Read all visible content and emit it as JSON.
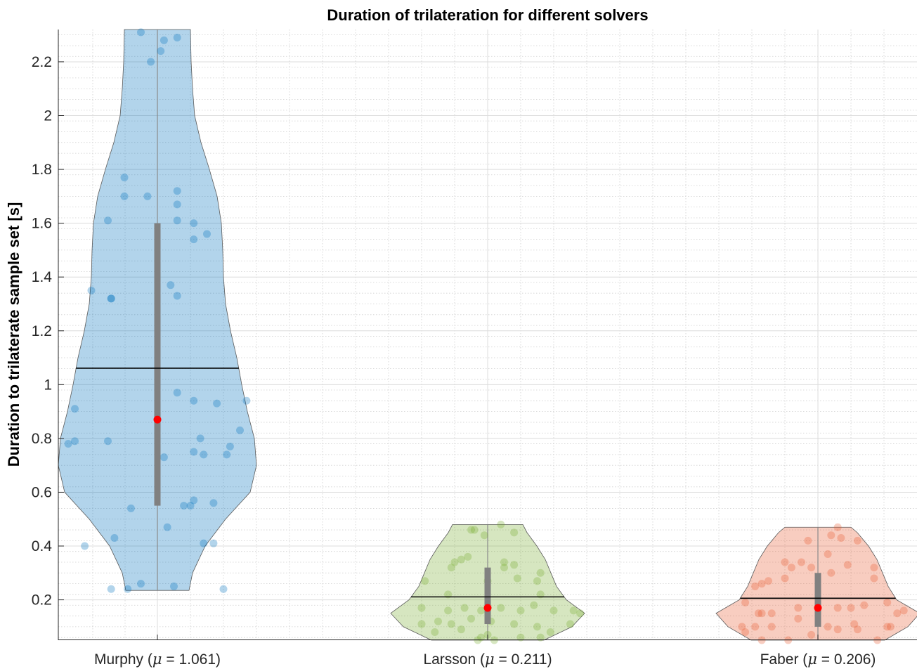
{
  "chart_data": {
    "type": "violin",
    "title": "Duration of trilateration for different solvers",
    "xlabel": "",
    "ylabel": "Duration to trilaterate sample set [s]",
    "ylim": [
      0.05,
      2.32
    ],
    "yticks": [
      0.2,
      0.4,
      0.6,
      0.8,
      1,
      1.2,
      1.4,
      1.6,
      1.8,
      2,
      2.2
    ],
    "grid": true,
    "minor_grid": true,
    "colors": {
      "Murphy": "#0072BD",
      "Larsson": "#77AC30",
      "Faber": "#E85A30",
      "median_marker": "#FF0000",
      "mean_line": "#000000",
      "box": "#808080"
    },
    "series": [
      {
        "name": "Murphy",
        "label": "Murphy (μ = 1.061)",
        "label_prefix": "Murphy (",
        "label_mu": "μ",
        "label_suffix": " = 1.061)",
        "mean": 1.061,
        "median": 0.87,
        "q1": 0.55,
        "q3": 1.6,
        "min": 0.235,
        "max": 2.32,
        "profile": [
          [
            0.235,
            45
          ],
          [
            0.3,
            50
          ],
          [
            0.4,
            68
          ],
          [
            0.5,
            97
          ],
          [
            0.6,
            132
          ],
          [
            0.7,
            141
          ],
          [
            0.8,
            138
          ],
          [
            0.9,
            128
          ],
          [
            1.0,
            120
          ],
          [
            1.1,
            113
          ],
          [
            1.2,
            104
          ],
          [
            1.3,
            97
          ],
          [
            1.4,
            94
          ],
          [
            1.5,
            93
          ],
          [
            1.6,
            91
          ],
          [
            1.7,
            85
          ],
          [
            1.8,
            74
          ],
          [
            1.9,
            62
          ],
          [
            2.0,
            53
          ],
          [
            2.1,
            50
          ],
          [
            2.2,
            48
          ],
          [
            2.32,
            47
          ]
        ],
        "points": [
          [
            -0.05,
            2.31
          ],
          [
            0.02,
            2.28
          ],
          [
            0.01,
            2.24
          ],
          [
            0.06,
            2.29
          ],
          [
            -0.02,
            2.2
          ],
          [
            -0.1,
            1.77
          ],
          [
            -0.1,
            1.7
          ],
          [
            -0.03,
            1.7
          ],
          [
            0.06,
            1.72
          ],
          [
            0.06,
            1.67
          ],
          [
            -0.15,
            1.61
          ],
          [
            0.06,
            1.61
          ],
          [
            0.11,
            1.6
          ],
          [
            0.11,
            1.54
          ],
          [
            0.15,
            1.56
          ],
          [
            -0.2,
            1.35
          ],
          [
            -0.14,
            1.32
          ],
          [
            -0.14,
            1.32
          ],
          [
            0.04,
            1.37
          ],
          [
            0.06,
            1.33
          ],
          [
            0.06,
            0.97
          ],
          [
            0.11,
            0.94
          ],
          [
            0.18,
            0.93
          ],
          [
            0.27,
            0.94
          ],
          [
            -0.25,
            0.91
          ],
          [
            0.25,
            0.83
          ],
          [
            0.13,
            0.8
          ],
          [
            -0.25,
            0.79
          ],
          [
            -0.27,
            0.78
          ],
          [
            -0.15,
            0.79
          ],
          [
            0.22,
            0.77
          ],
          [
            0.21,
            0.74
          ],
          [
            0.11,
            0.75
          ],
          [
            0.14,
            0.74
          ],
          [
            0.02,
            0.73
          ],
          [
            -0.08,
            0.54
          ],
          [
            0.08,
            0.55
          ],
          [
            0.1,
            0.55
          ],
          [
            0.11,
            0.57
          ],
          [
            0.17,
            0.56
          ],
          [
            0.03,
            0.47
          ],
          [
            -0.13,
            0.43
          ],
          [
            -0.22,
            0.4
          ],
          [
            0.14,
            0.41
          ],
          [
            0.17,
            0.41
          ],
          [
            -0.14,
            0.24
          ],
          [
            -0.09,
            0.24
          ],
          [
            -0.05,
            0.26
          ],
          [
            0.05,
            0.25
          ],
          [
            0.2,
            0.24
          ]
        ]
      },
      {
        "name": "Larsson",
        "label": "Larsson (μ = 0.211)",
        "label_prefix": "Larsson (",
        "label_mu": "μ",
        "label_suffix": " = 0.211)",
        "mean": 0.211,
        "median": 0.17,
        "q1": 0.11,
        "q3": 0.32,
        "min": 0.05,
        "max": 0.48,
        "profile": [
          [
            0.05,
            80
          ],
          [
            0.1,
            120
          ],
          [
            0.15,
            138
          ],
          [
            0.2,
            112
          ],
          [
            0.25,
            98
          ],
          [
            0.3,
            90
          ],
          [
            0.35,
            82
          ],
          [
            0.4,
            70
          ],
          [
            0.45,
            56
          ],
          [
            0.48,
            50
          ]
        ],
        "points": [
          [
            -0.05,
            0.46
          ],
          [
            -0.04,
            0.46
          ],
          [
            0.04,
            0.48
          ],
          [
            0.08,
            0.45
          ],
          [
            -0.01,
            0.44
          ],
          [
            -0.06,
            0.36
          ],
          [
            -0.1,
            0.34
          ],
          [
            -0.11,
            0.32
          ],
          [
            -0.08,
            0.35
          ],
          [
            0.05,
            0.34
          ],
          [
            0.05,
            0.32
          ],
          [
            0.08,
            0.33
          ],
          [
            0.16,
            0.3
          ],
          [
            -0.19,
            0.27
          ],
          [
            0.0,
            0.27
          ],
          [
            0.09,
            0.28
          ],
          [
            0.15,
            0.27
          ],
          [
            0.16,
            0.22
          ],
          [
            -0.12,
            0.22
          ],
          [
            -0.2,
            0.17
          ],
          [
            -0.12,
            0.16
          ],
          [
            -0.07,
            0.17
          ],
          [
            -0.02,
            0.16
          ],
          [
            0.04,
            0.17
          ],
          [
            0.1,
            0.16
          ],
          [
            0.14,
            0.18
          ],
          [
            0.2,
            0.16
          ],
          [
            0.26,
            0.16
          ],
          [
            0.28,
            0.15
          ],
          [
            -0.2,
            0.11
          ],
          [
            -0.15,
            0.12
          ],
          [
            -0.11,
            0.11
          ],
          [
            -0.05,
            0.13
          ],
          [
            0.01,
            0.12
          ],
          [
            0.08,
            0.11
          ],
          [
            0.15,
            0.1
          ],
          [
            0.25,
            0.11
          ],
          [
            -0.16,
            0.08
          ],
          [
            -0.08,
            0.09
          ],
          [
            0.0,
            0.07
          ],
          [
            0.02,
            0.05
          ],
          [
            0.1,
            0.06
          ],
          [
            0.16,
            0.06
          ],
          [
            0.19,
            0.08
          ],
          [
            -0.03,
            0.05
          ],
          [
            -0.02,
            0.06
          ]
        ]
      },
      {
        "name": "Faber",
        "label": "Faber (μ = 0.206)",
        "label_prefix": "Faber (",
        "label_mu": "μ",
        "label_suffix": " = 0.206)",
        "mean": 0.206,
        "median": 0.17,
        "q1": 0.1,
        "q3": 0.3,
        "min": 0.05,
        "max": 0.47,
        "profile": [
          [
            0.05,
            95
          ],
          [
            0.1,
            128
          ],
          [
            0.15,
            145
          ],
          [
            0.2,
            112
          ],
          [
            0.25,
            100
          ],
          [
            0.3,
            92
          ],
          [
            0.35,
            84
          ],
          [
            0.4,
            72
          ],
          [
            0.45,
            56
          ],
          [
            0.47,
            47
          ]
        ],
        "points": [
          [
            -0.03,
            0.42
          ],
          [
            0.04,
            0.44
          ],
          [
            0.06,
            0.47
          ],
          [
            0.07,
            0.43
          ],
          [
            0.12,
            0.42
          ],
          [
            -0.1,
            0.34
          ],
          [
            -0.05,
            0.34
          ],
          [
            -0.02,
            0.32
          ],
          [
            -0.08,
            0.32
          ],
          [
            0.03,
            0.37
          ],
          [
            0.09,
            0.33
          ],
          [
            0.17,
            0.32
          ],
          [
            0.17,
            0.28
          ],
          [
            -0.19,
            0.25
          ],
          [
            -0.17,
            0.26
          ],
          [
            -0.1,
            0.28
          ],
          [
            -0.15,
            0.27
          ],
          [
            0.04,
            0.3
          ],
          [
            -0.22,
            0.19
          ],
          [
            -0.18,
            0.15
          ],
          [
            -0.17,
            0.15
          ],
          [
            -0.14,
            0.15
          ],
          [
            -0.06,
            0.17
          ],
          [
            0.06,
            0.17
          ],
          [
            0.1,
            0.17
          ],
          [
            0.14,
            0.18
          ],
          [
            0.21,
            0.19
          ],
          [
            0.24,
            0.15
          ],
          [
            0.26,
            0.16
          ],
          [
            -0.23,
            0.1
          ],
          [
            -0.19,
            0.1
          ],
          [
            -0.14,
            0.1
          ],
          [
            -0.06,
            0.13
          ],
          [
            0.03,
            0.1
          ],
          [
            0.11,
            0.11
          ],
          [
            0.21,
            0.1
          ],
          [
            0.22,
            0.1
          ],
          [
            -0.22,
            0.08
          ],
          [
            -0.17,
            0.05
          ],
          [
            -0.09,
            0.05
          ],
          [
            -0.02,
            0.07
          ],
          [
            0.06,
            0.09
          ],
          [
            0.12,
            0.09
          ],
          [
            0.18,
            0.05
          ]
        ]
      }
    ]
  }
}
